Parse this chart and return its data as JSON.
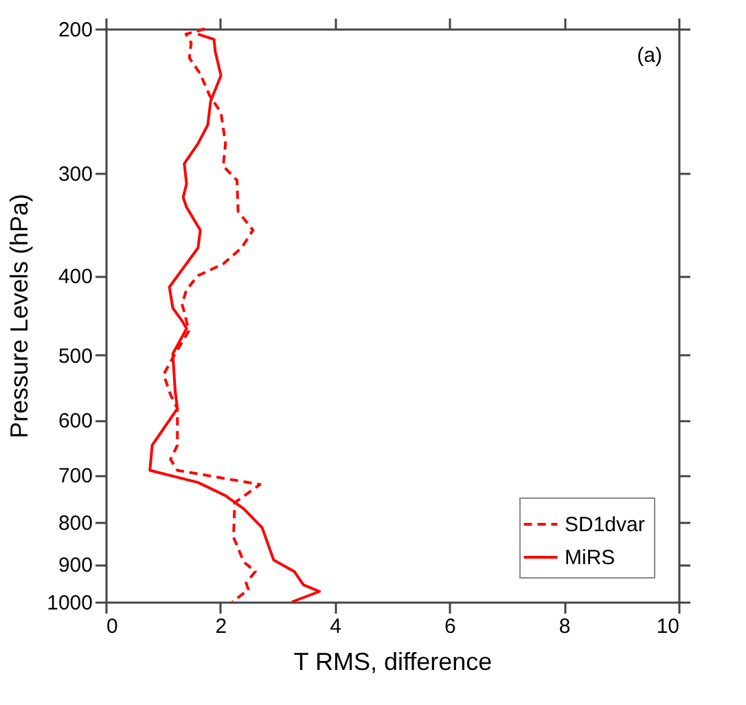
{
  "chart_data": {
    "type": "line",
    "xlabel": "T RMS, difference",
    "ylabel": "Pressure Levels (hPa)",
    "xlim": [
      0,
      10
    ],
    "xticks": [
      0,
      2,
      4,
      6,
      8,
      10
    ],
    "ylim": [
      1000,
      200
    ],
    "yticks": [
      200,
      300,
      400,
      500,
      600,
      700,
      800,
      900,
      1000
    ],
    "log": "y",
    "legend": "bottom right",
    "grid": false,
    "annotations": [
      "(a)"
    ],
    "series": [
      {
        "name": "SD1dvar",
        "color": "#ff0000",
        "line_style": "dashed",
        "x": [
          1.73,
          1.4,
          1.49,
          1.46,
          1.65,
          1.81,
          2.01,
          2.09,
          2.05,
          2.29,
          2.31,
          2.57,
          2.37,
          2.05,
          1.61,
          1.41,
          1.33,
          1.37,
          1.45,
          1.21,
          1.01,
          1.13,
          1.25,
          1.25,
          1.13,
          1.25,
          2.69,
          2.25,
          2.23,
          2.41,
          2.61,
          2.45,
          2.49,
          2.21
        ],
        "values": [
          200,
          203,
          208,
          217,
          227,
          241,
          253,
          276,
          294,
          306,
          334,
          352,
          370,
          387,
          400,
          416,
          433,
          443,
          467,
          498,
          528,
          559,
          581,
          644,
          670,
          691,
          719,
          757,
          834,
          894,
          918,
          948,
          966,
          1000
        ]
      },
      {
        "name": "MiRS",
        "color": "#ff0000",
        "line_style": "solid",
        "x": [
          1.61,
          1.89,
          1.91,
          2.01,
          1.83,
          1.78,
          1.61,
          1.37,
          1.41,
          1.35,
          1.41,
          1.65,
          1.61,
          1.37,
          1.11,
          1.17,
          1.33,
          1.41,
          1.17,
          1.21,
          1.25,
          0.81,
          0.77,
          1.61,
          2.09,
          2.41,
          2.73,
          2.93,
          3.29,
          3.45,
          3.73,
          3.25
        ],
        "values": [
          203,
          206,
          213,
          228,
          245,
          262,
          276,
          292,
          309,
          321,
          330,
          352,
          370,
          390,
          413,
          438,
          454,
          464,
          498,
          552,
          581,
          644,
          691,
          715,
          742,
          770,
          812,
          889,
          918,
          953,
          971,
          1000
        ]
      }
    ]
  }
}
